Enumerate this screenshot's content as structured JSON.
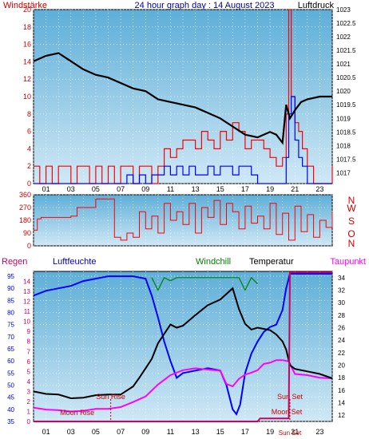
{
  "header": {
    "left_label": "Windstärke",
    "title": "24 hour graph day : 14 August 2023",
    "right_label": "Luftdruck"
  },
  "direction_labels": [
    "N",
    "W",
    "S",
    "O",
    "N"
  ],
  "lower_header": {
    "regen": "Regen",
    "luftfeuchte": "Luftfeuchte",
    "windchill": "Windchill",
    "temperatur": "Temperatur",
    "taupunkt": "Taupunkt"
  },
  "event_labels": {
    "sun_rise": "Sun Rise",
    "moon_rise": "Moon Rise",
    "sun_set": "Sun Set",
    "moon_set": "Moon Set",
    "sun_set_short": "Sun Set"
  },
  "colors": {
    "background": "#ffffff",
    "plot_top": "#5eaed8",
    "plot_bottom": "#cfe8f6",
    "wind": "#ff0000",
    "gust": "#0000ff",
    "pressure": "#000000",
    "temperature": "#000000",
    "humidity": "#0000ff",
    "dewpoint": "#ff00ff",
    "windchill": "#008000",
    "rain": "#cc0066",
    "sun_label": "#cc0000"
  },
  "chart_data": [
    {
      "type": "line",
      "x_tick_labels": [
        "01",
        "03",
        "05",
        "07",
        "09",
        "11",
        "13",
        "15",
        "17",
        "19",
        "21",
        "23"
      ],
      "y_left": {
        "label": "Windstärke",
        "ylim": [
          0,
          20
        ],
        "ticks": [
          "0",
          "2",
          "4",
          "6",
          "8",
          "10",
          "12",
          "14",
          "16",
          "18",
          "20"
        ]
      },
      "y_right": {
        "label": "Luftdruck",
        "ylim": [
          1016.6,
          1023
        ],
        "ticks": [
          "1017",
          "1017.5",
          "1018",
          "1018.5",
          "1019",
          "1019.5",
          "1020",
          "1020.5",
          "1021",
          "1021.5",
          "1022",
          "1022.5",
          "1023"
        ]
      },
      "series": [
        {
          "axis": "right",
          "x": [
            0,
            1,
            2,
            3,
            4,
            5,
            6,
            7,
            8,
            9,
            10,
            11,
            12,
            13,
            14,
            15,
            16,
            17,
            18,
            19,
            19.5,
            20,
            20.3,
            20.6,
            21,
            21.5,
            22,
            23,
            24
          ],
          "values": [
            1021.1,
            1021.3,
            1021.4,
            1021.1,
            1020.8,
            1020.6,
            1020.5,
            1020.3,
            1020.1,
            1020.0,
            1019.7,
            1019.6,
            1019.5,
            1019.4,
            1019.2,
            1019.0,
            1018.7,
            1018.4,
            1018.3,
            1018.5,
            1018.4,
            1018.1,
            1019.5,
            1019.0,
            1019.3,
            1019.6,
            1019.7,
            1019.8,
            1019.8
          ]
        },
        {
          "axis": "left",
          "x": [
            0,
            0.5,
            1,
            1.5,
            2,
            2.5,
            3,
            3.5,
            4,
            4.5,
            5,
            5.5,
            6,
            6.5,
            7,
            7.5,
            8,
            8.5,
            9,
            9.5,
            10,
            10.5,
            11,
            11.5,
            12,
            12.5,
            13,
            13.5,
            14,
            14.5,
            15,
            15.5,
            16,
            16.5,
            17,
            17.5,
            18,
            18.5,
            19,
            19.5,
            20,
            20.3,
            20.5,
            20.7,
            21,
            21.3,
            21.6,
            22,
            22.5,
            23,
            23.5,
            24
          ],
          "values": [
            2,
            0,
            2,
            0,
            2,
            2,
            0,
            2,
            2,
            0,
            2,
            0,
            2,
            0,
            2,
            2,
            0,
            2,
            2,
            0,
            2,
            4,
            3,
            4,
            5,
            5,
            4,
            6,
            5,
            4,
            6,
            5,
            7,
            6,
            4,
            5,
            5,
            4,
            3,
            2,
            3,
            8,
            20,
            10,
            7,
            6,
            4,
            2,
            0,
            0,
            0,
            2
          ]
        },
        {
          "axis": "left",
          "x": [
            0,
            1,
            2,
            3,
            4,
            5,
            6,
            7,
            7.5,
            8,
            8.5,
            9,
            9.5,
            10,
            10.5,
            11,
            11.5,
            12,
            12.5,
            13,
            13.5,
            14,
            14.5,
            15,
            15.5,
            16,
            16.5,
            17,
            17.5,
            18,
            18.5,
            19,
            19.5,
            20,
            20.3,
            20.5,
            20.7,
            21,
            21.3,
            21.6,
            22,
            23,
            24
          ],
          "values": [
            0,
            0,
            0,
            0,
            0,
            0,
            0,
            0,
            1,
            0,
            1,
            0,
            1,
            1,
            2,
            1,
            2,
            1,
            2,
            1,
            1,
            2,
            1,
            2,
            2,
            1,
            2,
            2,
            1,
            0,
            0,
            0,
            0,
            0,
            3,
            8,
            10,
            5,
            3,
            2,
            0,
            0,
            0
          ]
        }
      ]
    },
    {
      "type": "scatter",
      "y_ticks": [
        "0",
        "90",
        "180",
        "270",
        "360"
      ],
      "ylim": [
        0,
        360
      ],
      "x": [
        0,
        0.3,
        0.6,
        1,
        2,
        3,
        3.5,
        4,
        4.5,
        5,
        5.5,
        6,
        6.5,
        7,
        7.5,
        8,
        8.5,
        9,
        9.5,
        10,
        10.5,
        11,
        11.5,
        12,
        12.5,
        13,
        13.5,
        14,
        14.5,
        15,
        15.5,
        16,
        16.5,
        17,
        17.5,
        18,
        18.5,
        19,
        19.5,
        20,
        20.5,
        21,
        21.5,
        22,
        22.5,
        23,
        23.5,
        24
      ],
      "values": [
        110,
        190,
        200,
        200,
        200,
        210,
        270,
        270,
        270,
        330,
        330,
        330,
        60,
        40,
        90,
        60,
        240,
        120,
        210,
        90,
        300,
        180,
        240,
        150,
        300,
        90,
        270,
        200,
        320,
        150,
        300,
        240,
        120,
        280,
        160,
        210,
        120,
        300,
        80,
        230,
        40,
        280,
        100,
        220,
        60,
        180,
        130,
        240
      ]
    },
    {
      "type": "line",
      "x_tick_labels": [
        "01",
        "03",
        "05",
        "07",
        "09",
        "11",
        "13",
        "15",
        "17",
        "19",
        "21",
        "23"
      ],
      "y_left": {
        "label": "Luftfeuchte",
        "ylim": [
          35,
          97
        ],
        "ticks": [
          "35",
          "40",
          "45",
          "50",
          "55",
          "60",
          "65",
          "70",
          "75",
          "80",
          "85",
          "90",
          "95"
        ]
      },
      "y_regen": {
        "label": "Regen",
        "ylim": [
          0,
          15
        ],
        "ticks": [
          "0",
          "1",
          "2",
          "3",
          "4",
          "5",
          "6",
          "7",
          "8",
          "9",
          "10",
          "11",
          "12",
          "13",
          "14"
        ]
      },
      "y_right": {
        "label": "Temperatur",
        "ylim": [
          11,
          35
        ],
        "ticks": [
          "12",
          "14",
          "16",
          "18",
          "20",
          "22",
          "24",
          "26",
          "28",
          "30",
          "32",
          "34"
        ]
      },
      "series": [
        {
          "axis": "left",
          "x": [
            0,
            1,
            2,
            3,
            4,
            5,
            6,
            7,
            8,
            9,
            9.5,
            10,
            10.5,
            11,
            11.5,
            12,
            13,
            14,
            15,
            15.5,
            16,
            16.3,
            16.6,
            17,
            17.5,
            18,
            18.5,
            19,
            19.5,
            20,
            20.3,
            20.6,
            21,
            22,
            23,
            24
          ],
          "values": [
            87,
            89,
            90,
            91,
            93,
            94,
            95,
            95,
            95,
            94,
            87,
            78,
            68,
            60,
            53,
            55,
            56,
            57,
            56,
            50,
            40,
            38,
            42,
            55,
            63,
            68,
            72,
            74,
            75,
            81,
            90,
            96,
            96,
            96,
            96,
            96
          ]
        },
        {
          "axis": "right",
          "x": [
            0,
            1,
            2,
            3,
            4,
            5,
            6,
            7,
            8,
            8.5,
            9,
            9.5,
            10,
            10.5,
            11,
            11.5,
            12,
            13,
            14,
            15,
            16,
            16.5,
            17,
            17.5,
            18,
            19,
            19.5,
            20,
            20.3,
            20.6,
            21,
            22,
            23,
            24
          ],
          "values": [
            15.8,
            15.4,
            15.3,
            14.7,
            14.8,
            15.2,
            15.3,
            15.3,
            16.6,
            18,
            19.5,
            21,
            23.5,
            25,
            26.5,
            26,
            26.3,
            28,
            29.6,
            30.5,
            32.3,
            29,
            26.6,
            25.7,
            26,
            25.6,
            24.9,
            23.8,
            22.5,
            20,
            19.4,
            19,
            18.6,
            17.9
          ]
        },
        {
          "axis": "right",
          "x": [
            0,
            1,
            2,
            3,
            4,
            5,
            6,
            7,
            8,
            9,
            10,
            11,
            12,
            13,
            14,
            15,
            15.5,
            16,
            16.5,
            17,
            17.5,
            18,
            18.5,
            19,
            19.5,
            20,
            20.5,
            21,
            22,
            23,
            24
          ],
          "values": [
            13.2,
            12.9,
            12.8,
            12.6,
            12.7,
            13.0,
            13.0,
            13.3,
            14.1,
            15.0,
            16.9,
            18.4,
            19.2,
            19.5,
            19.3,
            19.1,
            17.0,
            16.6,
            17.8,
            18.5,
            18.8,
            19.2,
            20.2,
            20.4,
            20.8,
            20.8,
            20.6,
            18.6,
            18.4,
            18.0,
            17.9
          ]
        },
        {
          "axis": "right",
          "x": [
            9.5,
            10,
            10.5,
            11,
            11.5,
            12,
            16.5,
            17,
            17.5,
            18
          ],
          "values": [
            34,
            32,
            34,
            33.5,
            34,
            34,
            34,
            32,
            34,
            33
          ]
        },
        {
          "axis": "regen",
          "x": [
            0,
            18,
            18.2,
            20.5,
            20.6,
            24
          ],
          "values": [
            0,
            0,
            0.3,
            0.3,
            14.9,
            14.9
          ]
        }
      ],
      "events": [
        {
          "label": "Sun Rise",
          "hour": 6.2
        },
        {
          "label": "Moon Rise",
          "hour": 6.2
        },
        {
          "label": "Sun Set",
          "hour": 20.6
        },
        {
          "label": "Moon Set",
          "hour": 20.5
        }
      ]
    }
  ]
}
